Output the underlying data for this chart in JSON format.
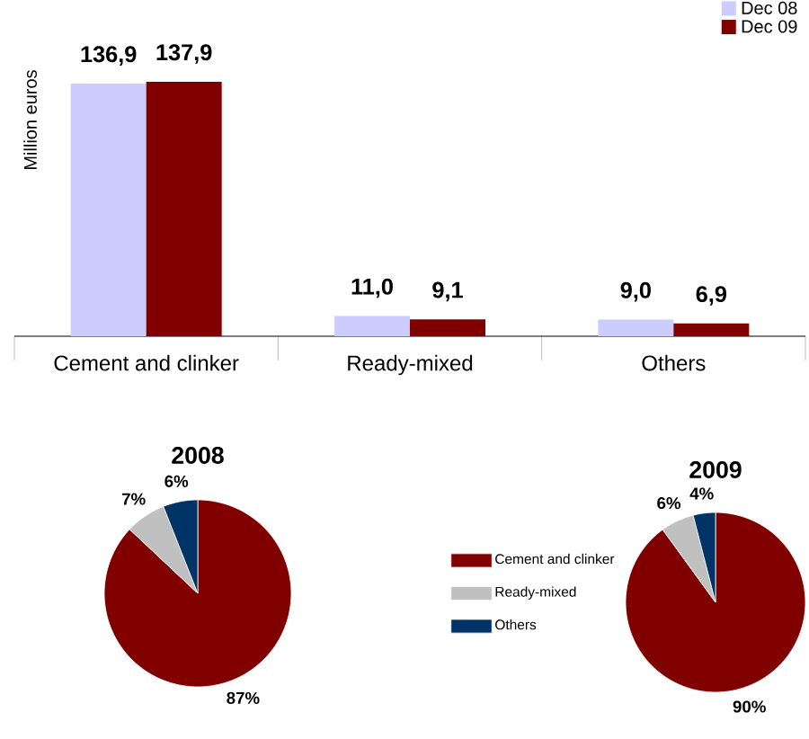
{
  "chart_data": [
    {
      "type": "bar",
      "ylabel": "Million euros",
      "categories": [
        "Cement and clinker",
        "Ready-mixed",
        "Others"
      ],
      "legend": "top right",
      "series": [
        {
          "name": "Dec 08",
          "color": "#ccccff",
          "values": [
            136.9,
            11.0,
            9.0
          ],
          "value_labels": [
            "136,9",
            "11,0",
            "9,0"
          ]
        },
        {
          "name": "Dec 09",
          "color": "#800000",
          "values": [
            137.9,
            9.1,
            6.9
          ],
          "value_labels": [
            "137,9",
            "9,1",
            "6,9"
          ]
        }
      ]
    },
    {
      "type": "pie",
      "title": "2008",
      "categories": [
        "Cement and clinker",
        "Ready-mixed",
        "Others"
      ],
      "values": [
        87,
        7,
        6
      ],
      "value_labels": [
        "87%",
        "7%",
        "6%"
      ],
      "colors": [
        "#800000",
        "#c0c0c0",
        "#003366"
      ],
      "legend": "right"
    },
    {
      "type": "pie",
      "title": "2009",
      "values": [
        90,
        6,
        4
      ],
      "value_labels": [
        "90%",
        "6%",
        "4%"
      ],
      "colors": [
        "#800000",
        "#c0c0c0",
        "#003366"
      ]
    }
  ]
}
